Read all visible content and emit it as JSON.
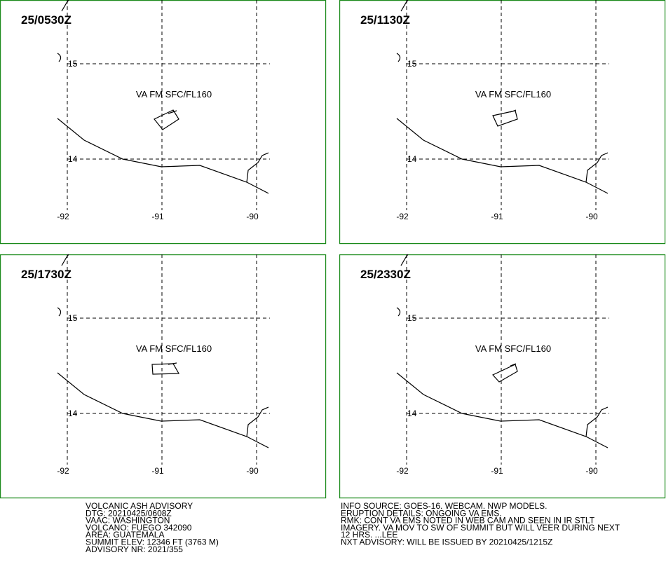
{
  "panels": [
    {
      "time": "25/0530Z",
      "label": "VA FM SFC/FL160"
    },
    {
      "time": "25/1130Z",
      "label": "VA FM SFC/FL160"
    },
    {
      "time": "25/1730Z",
      "label": "VA FM SFC/FL160"
    },
    {
      "time": "25/2330Z",
      "label": "VA FM SFC/FL160"
    }
  ],
  "grid": {
    "lat_labels": [
      "15",
      "14"
    ],
    "lon_labels": [
      "-92",
      "-91",
      "-90"
    ]
  },
  "advisory_left": [
    "VOLCANIC ASH ADVISORY",
    "DTG: 20210425/0608Z",
    "VAAC: WASHINGTON",
    "VOLCANO: FUEGO 342090",
    "AREA: GUATEMALA",
    "SUMMIT ELEV: 12346 FT (3763 M)",
    "ADVISORY NR: 2021/355"
  ],
  "advisory_right": [
    "INFO SOURCE: GOES-16. WEBCAM. NWP MODELS.",
    "ERUPTION DETAILS: ONGOING VA EMS.",
    "RMK: CONT VA EMS NOTED IN WEB CAM AND SEEN IN IR STLT",
    "IMAGERY. VA MOV TO SW OF SUMMIT BUT WILL VEER DURING NEXT",
    "12 HRS. ...LEE",
    "NXT ADVISORY: WILL BE ISSUED BY 20210425/1215Z"
  ]
}
